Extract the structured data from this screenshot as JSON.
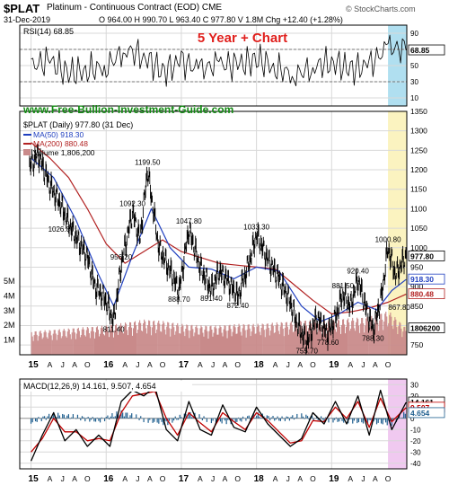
{
  "header": {
    "symbol": "$PLAT",
    "name": "Platinum - Continuous Contract (EOD) CME",
    "date": "31-Dec-2019",
    "ohlc": "O 964.00 H 990.70 L 963.40 C 977.80 V 1.8M Chg +12.40 (+1.28%)",
    "brand": "© StockCharts.com"
  },
  "chart_data": [
    {
      "type": "line",
      "panel": "rsi",
      "legend": "RSI(14) 68.85",
      "annotation": "5 Year + Chart",
      "ylim": [
        0,
        100
      ],
      "yticks": [
        10,
        30,
        50,
        70,
        90
      ],
      "reference_lines": [
        30,
        70
      ],
      "last_value": 68.85,
      "last_value_label": "68.85",
      "series": [
        {
          "x": [
            2015.0,
            2015.25,
            2015.5,
            2015.75,
            2016.0,
            2016.25,
            2016.5,
            2016.75,
            2017.0,
            2017.25,
            2017.5,
            2017.75,
            2018.0,
            2018.25,
            2018.5,
            2018.75,
            2019.0,
            2019.25,
            2019.5,
            2019.75,
            2019.99
          ],
          "values": [
            50,
            55,
            40,
            45,
            48,
            70,
            62,
            42,
            55,
            45,
            52,
            50,
            58,
            48,
            38,
            48,
            55,
            45,
            50,
            73,
            68.85
          ]
        }
      ]
    },
    {
      "type": "line",
      "panel": "price",
      "title": "$PLAT (Daily) 977.80 (31 Dec)",
      "watermark": "www.Free-Bullion-Investment-Guide.com",
      "ylim": [
        725,
        1350
      ],
      "yticks": [
        750,
        800,
        850,
        900,
        950,
        1000,
        1050,
        1100,
        1150,
        1200,
        1250,
        1300,
        1350
      ],
      "series": [
        {
          "name": "$PLAT",
          "x": [
            2014.98,
            2015.1,
            2015.25,
            2015.4,
            2015.48,
            2015.6,
            2015.75,
            2015.85,
            2015.98,
            2016.1,
            2016.2,
            2016.35,
            2016.45,
            2016.55,
            2016.7,
            2016.85,
            2016.97,
            2017.1,
            2017.25,
            2017.4,
            2017.5,
            2017.6,
            2017.75,
            2017.9,
            2018.0,
            2018.15,
            2018.3,
            2018.45,
            2018.55,
            2018.67,
            2018.8,
            2018.95,
            2019.05,
            2019.15,
            2019.25,
            2019.35,
            2019.45,
            2019.55,
            2019.66,
            2019.75,
            2019.85,
            2019.99
          ],
          "values": [
            1210,
            1240,
            1160,
            1110,
            1070,
            1026.8,
            975,
            900,
            870,
            811.4,
            956.2,
            1092.3,
            1020,
            1199.5,
            1000,
            940,
            888.7,
            1047.8,
            950,
            891.4,
            940,
            920,
            872.4,
            960,
            1033.3,
            970,
            920,
            860,
            800,
            755.7,
            820,
            778.6,
            820,
            881.5,
            850,
            920.4,
            850,
            788.3,
            870,
            1000.8,
            930,
            977.8
          ]
        },
        {
          "name": "MA(50) 918.30",
          "color": "#1f3fbf",
          "x": [
            2015.0,
            2015.3,
            2015.6,
            2015.9,
            2016.1,
            2016.35,
            2016.6,
            2016.85,
            2017.1,
            2017.4,
            2017.7,
            2018.0,
            2018.3,
            2018.6,
            2018.85,
            2019.1,
            2019.35,
            2019.6,
            2019.8,
            2019.99
          ],
          "values": [
            1230,
            1180,
            1070,
            930,
            850,
            980,
            1100,
            1000,
            950,
            945,
            920,
            950,
            940,
            850,
            810,
            830,
            860,
            840,
            890,
            918.3
          ]
        },
        {
          "name": "MA(200) 880.48",
          "color": "#b22222",
          "x": [
            2015.0,
            2015.25,
            2015.5,
            2015.75,
            2016.0,
            2016.25,
            2016.5,
            2016.75,
            2017.0,
            2017.25,
            2017.5,
            2017.75,
            2018.0,
            2018.25,
            2018.5,
            2018.75,
            2019.0,
            2019.25,
            2019.5,
            2019.75,
            2019.99
          ],
          "values": [
            1270,
            1230,
            1180,
            1100,
            1010,
            960,
            990,
            1020,
            990,
            975,
            960,
            955,
            950,
            945,
            905,
            865,
            830,
            835,
            845,
            860,
            880.48
          ]
        }
      ],
      "annotations": [
        {
          "x": 2015.4,
          "y": 1026.8,
          "label": "1026.80"
        },
        {
          "x": 2016.1,
          "y": 811.4,
          "label": "811.40"
        },
        {
          "x": 2016.2,
          "y": 956.2,
          "label": "956.20"
        },
        {
          "x": 2016.35,
          "y": 1092.3,
          "label": "1092.30"
        },
        {
          "x": 2016.55,
          "y": 1199.5,
          "label": "1199.50"
        },
        {
          "x": 2016.97,
          "y": 888.7,
          "label": "888.70"
        },
        {
          "x": 2017.1,
          "y": 1047.8,
          "label": "1047.80"
        },
        {
          "x": 2017.4,
          "y": 891.4,
          "label": "891.40"
        },
        {
          "x": 2017.75,
          "y": 872.4,
          "label": "872.40"
        },
        {
          "x": 2018.0,
          "y": 1033.3,
          "label": "1033.30"
        },
        {
          "x": 2018.67,
          "y": 755.7,
          "label": "755.70"
        },
        {
          "x": 2018.95,
          "y": 778.6,
          "label": "778.60"
        },
        {
          "x": 2019.15,
          "y": 881.5,
          "label": "881.50"
        },
        {
          "x": 2019.35,
          "y": 920.4,
          "label": "920.40"
        },
        {
          "x": 2019.55,
          "y": 788.3,
          "label": "788.30"
        },
        {
          "x": 2019.75,
          "y": 1000.8,
          "label": "1000.80"
        },
        {
          "x": 2019.9,
          "y": 867.8,
          "label": "867.80"
        }
      ],
      "right_labels": [
        {
          "value": 977.8,
          "label": "977.80",
          "color": "#000000"
        },
        {
          "value": 918.3,
          "label": "918.30",
          "color": "#1f3fbf"
        },
        {
          "value": 880.48,
          "label": "880.48",
          "color": "#b22222"
        }
      ]
    },
    {
      "type": "bar",
      "panel": "volume",
      "legend": "Volume 1,806,200",
      "yticks_labels": [
        "1M",
        "2M",
        "3M",
        "4M",
        "5M"
      ],
      "last_value_label": "1806200",
      "x": [
        2015.0,
        2015.25,
        2015.5,
        2015.75,
        2016.0,
        2016.25,
        2016.5,
        2016.75,
        2017.0,
        2017.25,
        2017.5,
        2017.75,
        2018.0,
        2018.25,
        2018.5,
        2018.75,
        2019.0,
        2019.25,
        2019.5,
        2019.75,
        2019.99
      ],
      "values": [
        1.6,
        1.7,
        1.8,
        1.9,
        2.0,
        2.2,
        2.4,
        2.3,
        2.1,
        2.0,
        2.0,
        2.1,
        2.1,
        2.2,
        2.3,
        2.4,
        2.4,
        2.5,
        2.6,
        3.0,
        1.8
      ]
    },
    {
      "type": "line",
      "panel": "macd",
      "legend": "MACD(12,26,9) 14.161, 9.507, 4.654",
      "ylim": [
        -45,
        35
      ],
      "yticks": [
        -40,
        -30,
        -20,
        -10,
        0,
        10,
        20,
        30
      ],
      "series": [
        {
          "name": "MACD",
          "color": "#000000",
          "x": [
            2015.0,
            2015.15,
            2015.3,
            2015.45,
            2015.6,
            2015.75,
            2015.9,
            2016.05,
            2016.2,
            2016.35,
            2016.5,
            2016.65,
            2016.8,
            2016.95,
            2017.1,
            2017.25,
            2017.4,
            2017.55,
            2017.7,
            2017.85,
            2018.0,
            2018.15,
            2018.3,
            2018.45,
            2018.6,
            2018.75,
            2018.9,
            2019.05,
            2019.2,
            2019.35,
            2019.5,
            2019.65,
            2019.8,
            2019.99
          ],
          "values": [
            -38,
            -15,
            5,
            -20,
            -10,
            -25,
            -15,
            -25,
            15,
            25,
            20,
            28,
            -10,
            -20,
            15,
            -10,
            -15,
            12,
            -8,
            -12,
            10,
            -5,
            -15,
            -25,
            -18,
            5,
            -5,
            15,
            -5,
            20,
            -15,
            25,
            -10,
            14.161
          ]
        },
        {
          "name": "Signal",
          "color": "#c00000",
          "x": [
            2015.0,
            2015.15,
            2015.3,
            2015.45,
            2015.6,
            2015.75,
            2015.9,
            2016.05,
            2016.2,
            2016.35,
            2016.5,
            2016.65,
            2016.8,
            2016.95,
            2017.1,
            2017.25,
            2017.4,
            2017.55,
            2017.7,
            2017.85,
            2018.0,
            2018.15,
            2018.3,
            2018.45,
            2018.6,
            2018.75,
            2018.9,
            2019.05,
            2019.2,
            2019.35,
            2019.5,
            2019.65,
            2019.8,
            2019.99
          ],
          "values": [
            -30,
            -18,
            0,
            -12,
            -12,
            -20,
            -18,
            -20,
            5,
            20,
            22,
            24,
            0,
            -15,
            5,
            -4,
            -12,
            5,
            -3,
            -10,
            5,
            -2,
            -12,
            -22,
            -20,
            -2,
            -3,
            10,
            0,
            15,
            -8,
            18,
            -3,
            9.507
          ]
        },
        {
          "name": "Histogram",
          "color": "#1f5f8f",
          "x": [
            2015.0,
            2015.3,
            2015.6,
            2015.9,
            2016.2,
            2016.5,
            2016.8,
            2017.1,
            2017.4,
            2017.7,
            2018.0,
            2018.3,
            2018.6,
            2018.9,
            2019.2,
            2019.5,
            2019.8,
            2019.99
          ],
          "values": [
            -3,
            3,
            1,
            -2,
            5,
            -1,
            -4,
            4,
            -2,
            -3,
            3,
            -1,
            2,
            -1,
            -2,
            -3,
            -4,
            4.654
          ]
        }
      ],
      "right_labels": [
        {
          "value": 14.161,
          "label": "14.161",
          "color": "#000000"
        },
        {
          "value": 9.507,
          "label": "9.507",
          "color": "#c00000"
        },
        {
          "value": 4.654,
          "label": "4.654",
          "color": "#1f5f8f"
        }
      ]
    }
  ],
  "xaxis": {
    "labels": [
      {
        "x": 2015.0,
        "text": "15",
        "major": true
      },
      {
        "x": 2015.25,
        "text": "A"
      },
      {
        "x": 2015.42,
        "text": "J"
      },
      {
        "x": 2015.58,
        "text": "A"
      },
      {
        "x": 2015.75,
        "text": "O"
      },
      {
        "x": 2016.0,
        "text": "16",
        "major": true
      },
      {
        "x": 2016.25,
        "text": "A"
      },
      {
        "x": 2016.42,
        "text": "J"
      },
      {
        "x": 2016.58,
        "text": "A"
      },
      {
        "x": 2016.75,
        "text": "O"
      },
      {
        "x": 2017.0,
        "text": "17",
        "major": true
      },
      {
        "x": 2017.25,
        "text": "A"
      },
      {
        "x": 2017.42,
        "text": "J"
      },
      {
        "x": 2017.58,
        "text": "A"
      },
      {
        "x": 2017.75,
        "text": "O"
      },
      {
        "x": 2018.0,
        "text": "18",
        "major": true
      },
      {
        "x": 2018.25,
        "text": "A"
      },
      {
        "x": 2018.42,
        "text": "J"
      },
      {
        "x": 2018.58,
        "text": "A"
      },
      {
        "x": 2018.75,
        "text": "O"
      },
      {
        "x": 2019.0,
        "text": "19",
        "major": true
      },
      {
        "x": 2019.25,
        "text": "A"
      },
      {
        "x": 2019.42,
        "text": "J"
      },
      {
        "x": 2019.58,
        "text": "A"
      },
      {
        "x": 2019.75,
        "text": "O"
      }
    ]
  },
  "colors": {
    "price": "#000000",
    "volume": "#c98a8a",
    "rsi_band_top": "#b0dff0",
    "price_highlight": "#fbf3c0",
    "macd_highlight": "#f0c9f0",
    "title_red": "#e0201d",
    "watermark_green": "#138a13",
    "grid": "#d8d8d8"
  }
}
